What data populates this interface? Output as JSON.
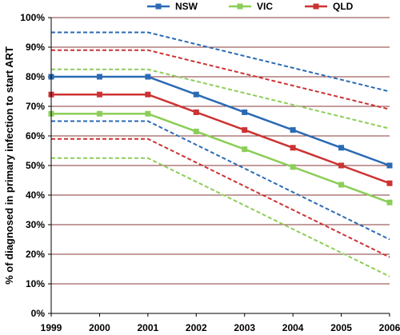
{
  "chart_data": {
    "type": "line",
    "ylabel": "% of diagnosed in primary infection to start ART",
    "xlabel": "",
    "x": [
      "1999",
      "2000",
      "2001",
      "2002",
      "2003",
      "2004",
      "2005",
      "2006"
    ],
    "ylim": [
      0,
      100
    ],
    "yticks": [
      "0%",
      "10%",
      "20%",
      "30%",
      "40%",
      "50%",
      "60%",
      "70%",
      "80%",
      "90%",
      "100%"
    ],
    "grid": "horizontal",
    "legend_position": "top",
    "series": [
      {
        "name": "NSW",
        "color": "#2a6ab5",
        "values": [
          80,
          80,
          80,
          74,
          68,
          62,
          56,
          50
        ],
        "upper": [
          95,
          95,
          95,
          91,
          87,
          83,
          79,
          75
        ],
        "lower": [
          65,
          65,
          65,
          57,
          49,
          41,
          33,
          25
        ]
      },
      {
        "name": "VIC",
        "color": "#8cce58",
        "values": [
          67.5,
          67.5,
          67.5,
          61.5,
          55.5,
          49.5,
          43.5,
          37.5
        ],
        "upper": [
          82.5,
          82.5,
          82.5,
          78.5,
          74.5,
          70.5,
          66.5,
          62.5
        ],
        "lower": [
          52.5,
          52.5,
          52.5,
          44.5,
          36.5,
          28.5,
          20.5,
          12.5
        ]
      },
      {
        "name": "QLD",
        "color": "#cc3333",
        "values": [
          74,
          74,
          74,
          68,
          62,
          56,
          50,
          44
        ],
        "upper": [
          89,
          89,
          89,
          85,
          81,
          77,
          73,
          69
        ],
        "lower": [
          59,
          59,
          59,
          51,
          43,
          35,
          27,
          19
        ]
      }
    ]
  }
}
